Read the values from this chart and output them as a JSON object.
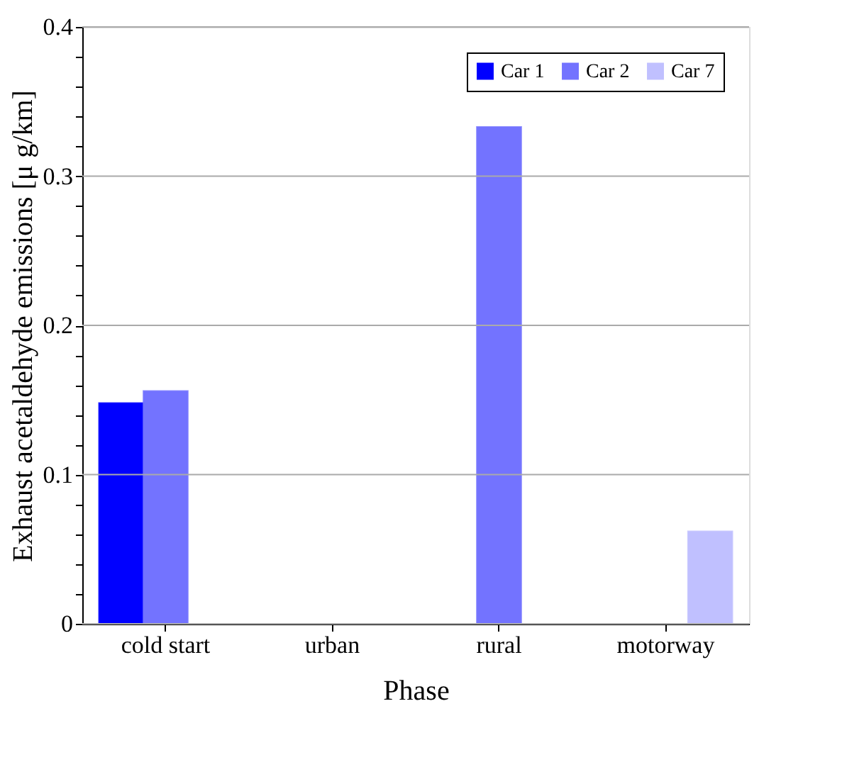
{
  "chart_data": {
    "type": "bar",
    "xlabel": "Phase",
    "ylabel": "Exhaust acetaldehyde emissions [μ g/km]",
    "categories": [
      "cold start",
      "urban",
      "rural",
      "motorway"
    ],
    "series": [
      {
        "name": "Car 1",
        "color": "#0000ff",
        "values": [
          0.148,
          0,
          0,
          0
        ]
      },
      {
        "name": "Car 2",
        "color": "#7373ff",
        "values": [
          0.156,
          0,
          0.333,
          0
        ]
      },
      {
        "name": "Car 7",
        "color": "#c0c0ff",
        "values": [
          0,
          0,
          0,
          0.062
        ]
      }
    ],
    "ylim": [
      0,
      0.4
    ],
    "yticks": [
      0,
      {
        "value": 0.02,
        "label": null
      },
      {
        "value": 0.04,
        "label": null
      },
      {
        "value": 0.06,
        "label": null
      },
      {
        "value": 0.08,
        "label": null
      },
      0.1,
      {
        "value": 0.12,
        "label": null
      },
      {
        "value": 0.14,
        "label": null
      },
      {
        "value": 0.16,
        "label": null
      },
      {
        "value": 0.18,
        "label": null
      },
      0.2,
      {
        "value": 0.22,
        "label": null
      },
      {
        "value": 0.24,
        "label": null
      },
      {
        "value": 0.26,
        "label": null
      },
      {
        "value": 0.28,
        "label": null
      },
      0.3,
      {
        "value": 0.32,
        "label": null
      },
      {
        "value": 0.34,
        "label": null
      },
      {
        "value": 0.36,
        "label": null
      },
      {
        "value": 0.38,
        "label": null
      },
      0.4
    ],
    "grid": "y",
    "legend": "top right"
  }
}
